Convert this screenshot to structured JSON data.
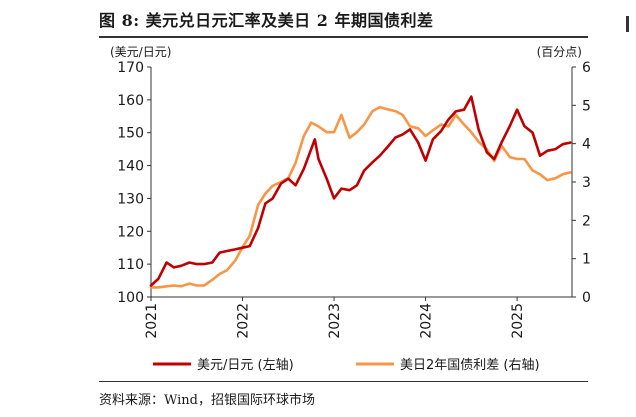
{
  "figure": {
    "title": "图 8: 美元兑日元汇率及美日 2 年期国债利差",
    "source": "资料来源：Wind，招银国际环球市场"
  },
  "chart_data": {
    "type": "line",
    "title": "图 8: 美元兑日元汇率及美日 2 年期国债利差",
    "left_axis_unit": "(美元/日元)",
    "right_axis_unit": "(百分点)",
    "y_left": {
      "min": 100,
      "max": 170,
      "ticks": [
        100,
        110,
        120,
        130,
        140,
        150,
        160,
        170
      ]
    },
    "y_right": {
      "min": 0,
      "max": 6,
      "ticks": [
        0,
        1,
        2,
        3,
        4,
        5,
        6
      ]
    },
    "x_range": [
      2021.0,
      2025.6
    ],
    "x_ticks": [
      {
        "value": 2021,
        "label": "2021"
      },
      {
        "value": 2022,
        "label": "2022"
      },
      {
        "value": 2023,
        "label": "2023"
      },
      {
        "value": 2024,
        "label": "2024"
      },
      {
        "value": 2025,
        "label": "2025"
      }
    ],
    "series": [
      {
        "name": "美元/日元 (左轴)",
        "axis": "left",
        "color": "#c00000",
        "x": [
          2021.0,
          2021.08,
          2021.17,
          2021.25,
          2021.33,
          2021.42,
          2021.5,
          2021.58,
          2021.67,
          2021.75,
          2021.83,
          2021.92,
          2022.0,
          2022.08,
          2022.17,
          2022.25,
          2022.33,
          2022.42,
          2022.5,
          2022.58,
          2022.67,
          2022.75,
          2022.79,
          2022.83,
          2022.92,
          2023.0,
          2023.08,
          2023.17,
          2023.25,
          2023.33,
          2023.42,
          2023.5,
          2023.58,
          2023.67,
          2023.75,
          2023.83,
          2023.92,
          2024.0,
          2024.08,
          2024.17,
          2024.25,
          2024.33,
          2024.42,
          2024.5,
          2024.58,
          2024.67,
          2024.75,
          2024.83,
          2024.92,
          2025.0,
          2025.08,
          2025.17,
          2025.25,
          2025.33,
          2025.42,
          2025.5,
          2025.58
        ],
        "values": [
          103.5,
          105.5,
          110.5,
          109.0,
          109.5,
          110.5,
          110.0,
          110.0,
          110.5,
          113.5,
          114.0,
          114.5,
          115.0,
          115.5,
          121.0,
          128.5,
          130.0,
          134.5,
          136.0,
          134.0,
          139.0,
          145.0,
          148.0,
          142.0,
          136.0,
          130.0,
          133.0,
          132.5,
          134.0,
          138.5,
          141.0,
          143.0,
          145.5,
          148.5,
          149.5,
          151.0,
          147.0,
          141.5,
          148.0,
          150.5,
          154.0,
          156.5,
          157.0,
          161.0,
          151.0,
          144.0,
          142.0,
          147.0,
          152.0,
          157.0,
          152.0,
          150.0,
          143.0,
          144.5,
          145.0,
          146.5,
          147.0
        ]
      },
      {
        "name": "美日2年国债利差 (右轴)",
        "axis": "right",
        "color": "#f79646",
        "x": [
          2021.0,
          2021.08,
          2021.17,
          2021.25,
          2021.33,
          2021.42,
          2021.5,
          2021.58,
          2021.67,
          2021.75,
          2021.83,
          2021.92,
          2022.0,
          2022.08,
          2022.17,
          2022.25,
          2022.33,
          2022.42,
          2022.5,
          2022.58,
          2022.67,
          2022.75,
          2022.83,
          2022.92,
          2023.0,
          2023.08,
          2023.17,
          2023.25,
          2023.33,
          2023.42,
          2023.5,
          2023.58,
          2023.67,
          2023.75,
          2023.83,
          2023.92,
          2024.0,
          2024.08,
          2024.17,
          2024.25,
          2024.33,
          2024.42,
          2024.5,
          2024.58,
          2024.67,
          2024.75,
          2024.83,
          2024.92,
          2025.0,
          2025.08,
          2025.17,
          2025.25,
          2025.33,
          2025.42,
          2025.5,
          2025.58
        ],
        "values": [
          0.25,
          0.25,
          0.28,
          0.3,
          0.28,
          0.35,
          0.3,
          0.3,
          0.45,
          0.6,
          0.7,
          0.95,
          1.3,
          1.6,
          2.4,
          2.7,
          2.9,
          3.0,
          3.1,
          3.5,
          4.2,
          4.55,
          4.45,
          4.3,
          4.3,
          4.75,
          4.15,
          4.3,
          4.5,
          4.85,
          4.95,
          4.9,
          4.85,
          4.75,
          4.45,
          4.4,
          4.2,
          4.35,
          4.5,
          4.45,
          4.75,
          4.5,
          4.3,
          4.05,
          3.85,
          3.55,
          3.95,
          3.65,
          3.6,
          3.6,
          3.3,
          3.2,
          3.05,
          3.1,
          3.2,
          3.25
        ]
      }
    ],
    "legend": [
      {
        "label": "美元/日元 (左轴)",
        "color": "#c00000"
      },
      {
        "label": "美日2年国债利差 (右轴)",
        "color": "#f79646"
      }
    ],
    "legend_position": "bottom"
  }
}
